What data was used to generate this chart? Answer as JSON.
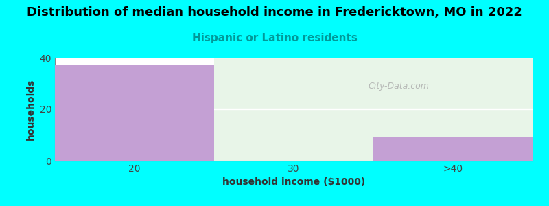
{
  "title": "Distribution of median household income in Fredericktown, MO in 2022",
  "subtitle": "Hispanic or Latino residents",
  "xlabel": "household income ($1000)",
  "ylabel": "households",
  "categories": [
    "20",
    "30",
    ">40"
  ],
  "values": [
    37,
    0,
    9
  ],
  "bar_colors": [
    "#c4a0d4",
    "#dceedd",
    "#c4a0d4"
  ],
  "background_color": "#00ffff",
  "plot_bg_left": "#ffffff",
  "plot_bg_right": "#e8f5e8",
  "ylim": [
    0,
    40
  ],
  "yticks": [
    0,
    20,
    40
  ],
  "title_fontsize": 13,
  "subtitle_color": "#009999",
  "subtitle_fontsize": 11,
  "watermark": "City-Data.com"
}
